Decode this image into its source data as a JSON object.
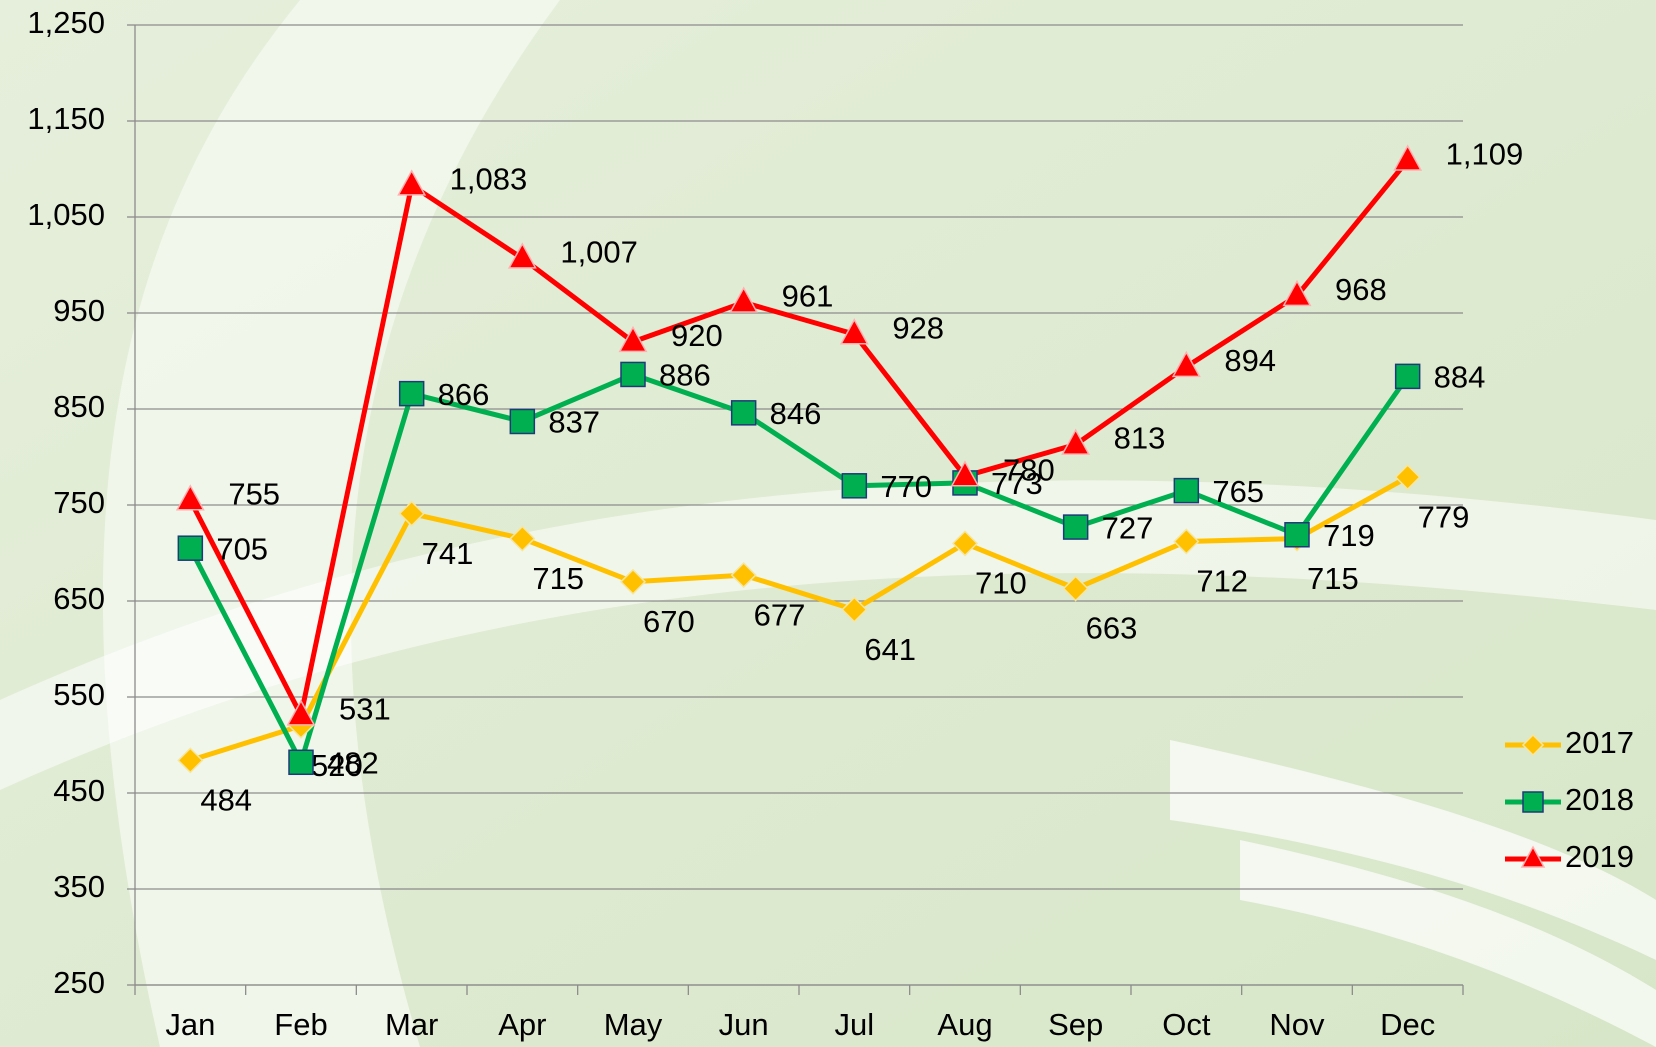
{
  "chart_data": {
    "type": "line",
    "categories": [
      "Jan",
      "Feb",
      "Mar",
      "Apr",
      "May",
      "Jun",
      "Jul",
      "Aug",
      "Sep",
      "Oct",
      "Nov",
      "Dec"
    ],
    "series": [
      {
        "name": "2017",
        "color": "#ffc000",
        "marker": "diamond",
        "values": [
          484,
          520,
          741,
          715,
          670,
          677,
          641,
          710,
          663,
          712,
          715,
          779
        ]
      },
      {
        "name": "2018",
        "color": "#00b050",
        "marker": "square",
        "values": [
          705,
          482,
          866,
          837,
          886,
          846,
          770,
          773,
          727,
          765,
          719,
          884
        ]
      },
      {
        "name": "2019",
        "color": "#ff0000",
        "marker": "triangle",
        "values": [
          755,
          531,
          1083,
          1007,
          920,
          961,
          928,
          780,
          813,
          894,
          968,
          1109
        ],
        "value_labels": [
          "755",
          "531",
          "1,083",
          "1,007",
          "920",
          "961",
          "928",
          "780",
          "813",
          "894",
          "968",
          "1,109"
        ]
      }
    ],
    "ylim": [
      250,
      1250
    ],
    "yticks": [
      250,
      350,
      450,
      550,
      650,
      750,
      850,
      950,
      {
        "value": 1050,
        "label": "1,050"
      },
      {
        "value": 1150,
        "label": "1,150"
      },
      {
        "value": 1250,
        "label": "1,250"
      }
    ],
    "grid": true,
    "legend": "right"
  }
}
